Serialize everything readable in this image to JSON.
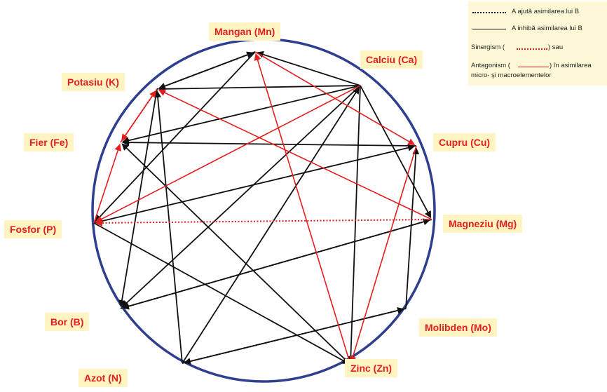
{
  "diagram": {
    "nodes": [
      {
        "id": "Mn",
        "label": "Mangan (Mn)"
      },
      {
        "id": "Ca",
        "label": "Calciu (Ca)"
      },
      {
        "id": "K",
        "label": "Potasiu (K)"
      },
      {
        "id": "Fe",
        "label": "Fier (Fe)"
      },
      {
        "id": "Cu",
        "label": "Cupru (Cu)"
      },
      {
        "id": "P",
        "label": "Fosfor (P)"
      },
      {
        "id": "Mg",
        "label": "Magneziu (Mg)"
      },
      {
        "id": "B",
        "label": "Bor (B)"
      },
      {
        "id": "Mo",
        "label": "Molibden (Mo)"
      },
      {
        "id": "N",
        "label": "Azot (N)"
      },
      {
        "id": "Zn",
        "label": "Zinc (Zn)"
      }
    ],
    "edges": [
      {
        "from": "K",
        "to": "Mn",
        "type": "helps"
      },
      {
        "from": "N",
        "to": "Mo",
        "type": "helps"
      },
      {
        "from": "B",
        "to": "Mg",
        "type": "helps"
      },
      {
        "from": "Ca",
        "to": "Mn",
        "type": "inhibits"
      },
      {
        "from": "Ca",
        "to": "K",
        "type": "inhibits"
      },
      {
        "from": "Ca",
        "to": "Fe",
        "type": "inhibits"
      },
      {
        "from": "Ca",
        "to": "B",
        "type": "inhibits"
      },
      {
        "from": "Ca",
        "to": "Mg",
        "type": "inhibits"
      },
      {
        "from": "Ca",
        "to": "Zn",
        "type": "inhibits"
      },
      {
        "from": "Mn",
        "to": "P",
        "type": "inhibits"
      },
      {
        "from": "Mn",
        "to": "K",
        "type": "inhibits"
      },
      {
        "from": "P",
        "to": "Cu",
        "type": "inhibits"
      },
      {
        "from": "P",
        "to": "Zn",
        "type": "inhibits"
      },
      {
        "from": "Cu",
        "to": "Fe",
        "type": "inhibits"
      },
      {
        "from": "Mo",
        "to": "Cu",
        "type": "inhibits"
      },
      {
        "from": "Mo",
        "to": "N",
        "type": "inhibits"
      },
      {
        "from": "N",
        "to": "K",
        "type": "inhibits"
      },
      {
        "from": "N",
        "to": "Ca",
        "type": "inhibits"
      },
      {
        "from": "Zn",
        "to": "Fe",
        "type": "inhibits"
      },
      {
        "from": "Mg",
        "to": "B",
        "type": "inhibits"
      },
      {
        "from": "K",
        "to": "B",
        "type": "inhibits"
      },
      {
        "from": "Zn",
        "to": "Mn",
        "type": "antagonism"
      },
      {
        "from": "Ca",
        "to": "P",
        "type": "antagonism"
      },
      {
        "from": "Mn",
        "to": "Cu",
        "type": "antagonism"
      },
      {
        "from": "Mg",
        "to": "K",
        "type": "antagonism"
      },
      {
        "from": "Cu",
        "to": "Zn",
        "type": "antagonism"
      },
      {
        "from": "P",
        "to": "Fe",
        "type": "antagonism"
      },
      {
        "from": "Fe",
        "to": "K",
        "type": "antagonism"
      },
      {
        "from": "Mg",
        "to": "P",
        "type": "synergism"
      },
      {
        "from": "K",
        "to": "Fe",
        "type": "synergism"
      }
    ]
  },
  "legend": {
    "helps_label": "A ajută asimilarea lui B",
    "inhibits_label": "A inhibă asimilarea lui B",
    "synergism_prefix": "Sinergism (",
    "synergism_suffix": ") sau",
    "antagonism_prefix": "Antagonism (",
    "antagonism_suffix": ") în asimilarea",
    "antagonism_line2": "micro- şi macroelementelor"
  },
  "colors": {
    "circle": "#2e3f8f",
    "black_arrow": "#111111",
    "red_arrow": "#e41e1e",
    "label_bg": "#fff4c2",
    "label_text": "#e41e1e"
  }
}
